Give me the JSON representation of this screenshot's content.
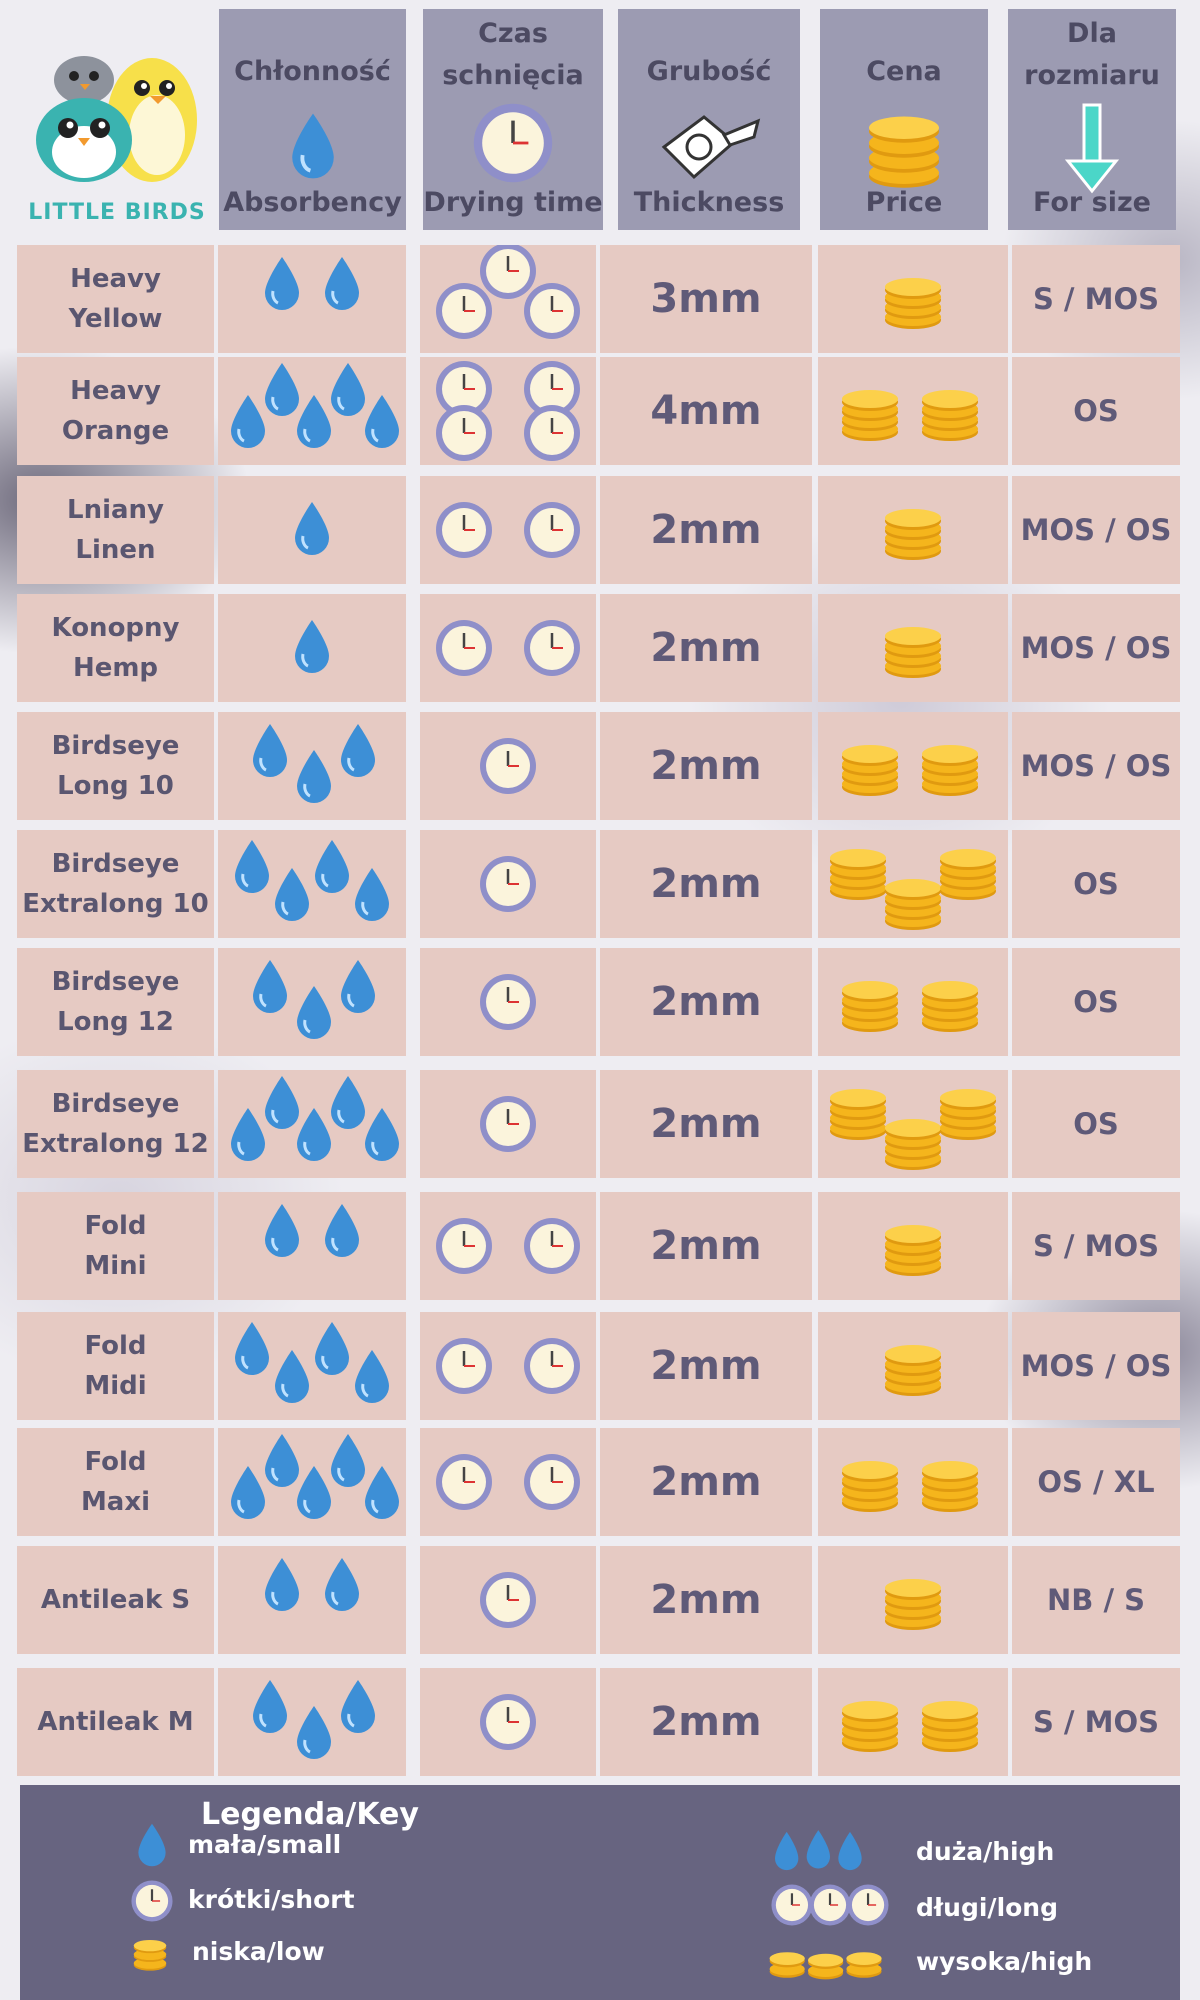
{
  "brand": {
    "logo_text": "LITTLE BIRDS"
  },
  "headers": [
    {
      "pl": "Chłonność",
      "en": "Absorbency",
      "icon": "water-drop-icon"
    },
    {
      "pl": "Czas schnięcia",
      "en": "Drying time",
      "icon": "clock-icon"
    },
    {
      "pl": "Grubość",
      "en": "Thickness",
      "icon": "tape-measure-icon"
    },
    {
      "pl": "Cena",
      "en": "Price",
      "icon": "coins-icon"
    },
    {
      "pl": "Dla rozmiaru",
      "en": "For size",
      "icon": "arrow-down-icon"
    }
  ],
  "rows": [
    {
      "name": [
        "Heavy",
        "Yellow"
      ],
      "absorbency": 2,
      "drying": 3,
      "thickness": "3mm",
      "price": 1,
      "size": "S / MOS"
    },
    {
      "name": [
        "Heavy",
        "Orange"
      ],
      "absorbency": 5,
      "drying": 4,
      "thickness": "4mm",
      "price": 2,
      "size": "OS"
    },
    {
      "name": [
        "Lniany",
        "Linen"
      ],
      "absorbency": 1,
      "drying": 2,
      "thickness": "2mm",
      "price": 1,
      "size": "MOS / OS"
    },
    {
      "name": [
        "Konopny",
        "Hemp"
      ],
      "absorbency": 1,
      "drying": 2,
      "thickness": "2mm",
      "price": 1,
      "size": "MOS / OS"
    },
    {
      "name": [
        "Birdseye",
        "Long 10"
      ],
      "absorbency": 3,
      "drying": 1,
      "thickness": "2mm",
      "price": 2,
      "size": "MOS / OS"
    },
    {
      "name": [
        "Birdseye",
        "Extralong 10"
      ],
      "absorbency": 4,
      "drying": 1,
      "thickness": "2mm",
      "price": 3,
      "size": "OS"
    },
    {
      "name": [
        "Birdseye",
        "Long 12"
      ],
      "absorbency": 3,
      "drying": 1,
      "thickness": "2mm",
      "price": 2,
      "size": "OS"
    },
    {
      "name": [
        "Birdseye",
        "Extralong 12"
      ],
      "absorbency": 5,
      "drying": 1,
      "thickness": "2mm",
      "price": 3,
      "size": "OS"
    },
    {
      "name": [
        "Fold",
        "Mini"
      ],
      "absorbency": 2,
      "drying": 2,
      "thickness": "2mm",
      "price": 1,
      "size": "S / MOS"
    },
    {
      "name": [
        "Fold",
        "Midi"
      ],
      "absorbency": 4,
      "drying": 2,
      "thickness": "2mm",
      "price": 1,
      "size": "MOS / OS"
    },
    {
      "name": [
        "Fold",
        "Maxi"
      ],
      "absorbency": 5,
      "drying": 2,
      "thickness": "2mm",
      "price": 2,
      "size": "OS / XL"
    },
    {
      "name": [
        "Antileak S"
      ],
      "absorbency": 2,
      "drying": 1,
      "thickness": "2mm",
      "price": 1,
      "size": "NB / S"
    },
    {
      "name": [
        "Antileak M"
      ],
      "absorbency": 3,
      "drying": 1,
      "thickness": "2mm",
      "price": 2,
      "size": "S / MOS"
    }
  ],
  "legend": {
    "title": "Legenda/Key",
    "small_absorbency": "mała/small",
    "short_drying": "krótki/short",
    "low_price": "niska/low",
    "high_absorbency": "duża/high",
    "long_drying": "długi/long",
    "high_price": "wysoka/high"
  },
  "colors": {
    "header_bg": "#9c9bb2",
    "cell_bg": "#e6cac3",
    "text": "#5f5a78",
    "legend_bg": "#676480",
    "drop": "#3d8fd6",
    "coin": "#f5b51c",
    "clock_ring": "#8f8fc9"
  }
}
